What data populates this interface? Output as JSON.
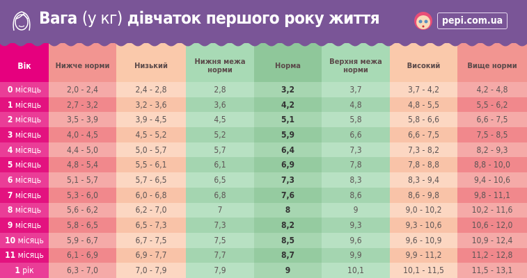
{
  "header": {
    "title_part1": "Вага",
    "title_part2": "(у кг)",
    "title_part3": "дівчаток першого року життя",
    "logo_text": "pepi.com.ua",
    "logo_icon": "baby-face-icon",
    "girl_icon": "girl-face-icon"
  },
  "colors": {
    "header_bg": "#7a5597",
    "age_col": "#e6007e",
    "below_norm": "#f29591",
    "low": "#fac9ab",
    "norm_bounds": "#a8dab5",
    "norm": "#8fc79a"
  },
  "table": {
    "columns": [
      "Вік",
      "Нижче норми",
      "Низький",
      "Нижня межа норми",
      "Норма",
      "Верхня межа норми",
      "Високий",
      "Вище норми"
    ],
    "rows": [
      {
        "age_num": "0",
        "age_unit": "місяць",
        "cells": [
          "2,0 - 2,4",
          "2,4 - 2,8",
          "2,8",
          "3,2",
          "3,7",
          "3,7 - 4,2",
          "4,2 - 4,8"
        ]
      },
      {
        "age_num": "1",
        "age_unit": "місяць",
        "cells": [
          "2,7 - 3,2",
          "3,2 - 3,6",
          "3,6",
          "4,2",
          "4,8",
          "4,8 - 5,5",
          "5,5 - 6,2"
        ]
      },
      {
        "age_num": "2",
        "age_unit": "місяць",
        "cells": [
          "3,5 - 3,9",
          "3,9 - 4,5",
          "4,5",
          "5,1",
          "5,8",
          "5,8 - 6,6",
          "6,6 - 7,5"
        ]
      },
      {
        "age_num": "3",
        "age_unit": "місяць",
        "cells": [
          "4,0 - 4,5",
          "4,5 - 5,2",
          "5,2",
          "5,9",
          "6,6",
          "6,6 - 7,5",
          "7,5 - 8,5"
        ]
      },
      {
        "age_num": "4",
        "age_unit": "місяць",
        "cells": [
          "4,4 - 5,0",
          "5,0 - 5,7",
          "5,7",
          "6,4",
          "7,3",
          "7,3 - 8,2",
          "8,2 - 9,3"
        ]
      },
      {
        "age_num": "5",
        "age_unit": "місяць",
        "cells": [
          "4,8 - 5,4",
          "5,5 - 6,1",
          "6,1",
          "6,9",
          "7,8",
          "7,8 - 8,8",
          "8,8  - 10,0"
        ]
      },
      {
        "age_num": "6",
        "age_unit": "місяць",
        "cells": [
          "5,1 - 5,7",
          "5,7 - 6,5",
          "6,5",
          "7,3",
          "8,3",
          "8,3 - 9,4",
          "9,4 - 10,6"
        ]
      },
      {
        "age_num": "7",
        "age_unit": "місяць",
        "cells": [
          "5,3 - 6,0",
          "6,0 - 6,8",
          "6,8",
          "7,6",
          "8,6",
          "8,6 - 9,8",
          "9,8 - 11,1"
        ]
      },
      {
        "age_num": "8",
        "age_unit": "місяць",
        "cells": [
          "5,6 - 6,2",
          "6,2 - 7,0",
          "7",
          "8",
          "9",
          "9,0 - 10,2",
          "10,2 - 11,6"
        ]
      },
      {
        "age_num": "9",
        "age_unit": "місяць",
        "cells": [
          "5,8 - 6,5",
          "6,5 - 7,3",
          "7,3",
          "8,2",
          "9,3",
          "9,3 - 10,6",
          "10,6 - 12,0"
        ]
      },
      {
        "age_num": "10",
        "age_unit": "місяць",
        "cells": [
          "5,9 - 6,7",
          "6,7 - 7,5",
          "7,5",
          "8,5",
          "9,6",
          "9,6 - 10,9",
          "10,9 - 12,4"
        ]
      },
      {
        "age_num": "11",
        "age_unit": "місяць",
        "cells": [
          "6,1 - 6,9",
          "6,9 - 7,7",
          "7,7",
          "8,7",
          "9,9",
          "9,9 - 11,2",
          "11,2 - 12,8"
        ]
      },
      {
        "age_num": "1",
        "age_unit": "рік",
        "cells": [
          "6,3 - 7,0",
          "7,0 - 7,9",
          "7,9",
          "9",
          "10,1",
          "10,1 - 11,5",
          "11,5 - 13,1"
        ]
      }
    ]
  }
}
